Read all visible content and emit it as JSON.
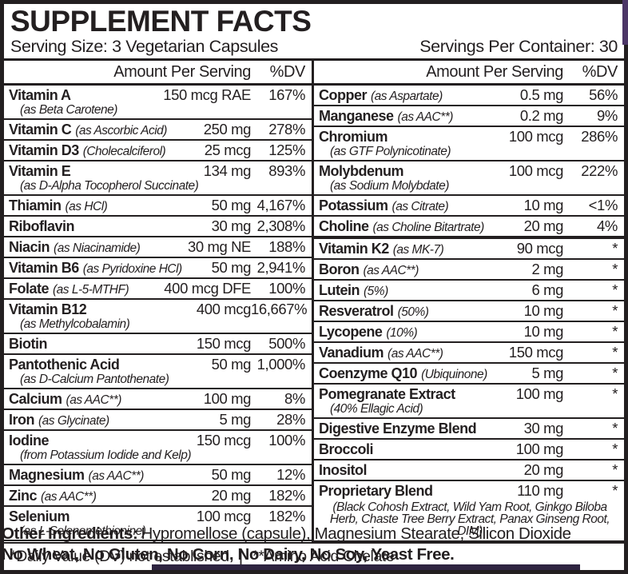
{
  "colors": {
    "ink": "#231f20",
    "accent_purple": "#4b3566",
    "bar_purple": "#2e2440"
  },
  "header": {
    "title": "SUPPLEMENT FACTS",
    "serving_size_label": "Serving Size:",
    "serving_size_value": "3 Vegetarian Capsules",
    "servings_per_container_label": "Servings Per Container:",
    "servings_per_container_value": "30"
  },
  "table": {
    "left": {
      "header": {
        "amount": "Amount Per Serving",
        "dv": "%DV"
      },
      "rows": [
        {
          "name": "Vitamin A",
          "sub": "(as Beta Carotene)",
          "amount": "150 mcg RAE",
          "dv": "167%"
        },
        {
          "name": "Vitamin C",
          "qualifier": "(as Ascorbic Acid)",
          "amount": "250 mg",
          "dv": "278%"
        },
        {
          "name": "Vitamin D3",
          "qualifier": "(Cholecalciferol)",
          "amount": "25 mcg",
          "dv": "125%"
        },
        {
          "name": "Vitamin E",
          "sub": "(as D-Alpha Tocopherol Succinate)",
          "amount": "134 mg",
          "dv": "893%"
        },
        {
          "name": "Thiamin",
          "qualifier": "(as HCl)",
          "amount": "50 mg",
          "dv": "4,167%"
        },
        {
          "name": "Riboflavin",
          "amount": "30 mg",
          "dv": "2,308%"
        },
        {
          "name": "Niacin",
          "qualifier": "(as Niacinamide)",
          "amount": "30 mg NE",
          "dv": "188%"
        },
        {
          "name": "Vitamin B6",
          "qualifier": "(as Pyridoxine HCl)",
          "amount": "50 mg",
          "dv": "2,941%"
        },
        {
          "name": "Folate",
          "qualifier": "(as L-5-MTHF)",
          "amount": "400 mcg DFE",
          "dv": "100%"
        },
        {
          "name": "Vitamin B12",
          "sub": "(as Methylcobalamin)",
          "amount": "400 mcg",
          "dv": "16,667%"
        },
        {
          "name": "Biotin",
          "amount": "150 mcg",
          "dv": "500%"
        },
        {
          "name": "Pantothenic Acid",
          "sub": "(as D-Calcium Pantothenate)",
          "amount": "50 mg",
          "dv": "1,000%"
        },
        {
          "name": "Calcium",
          "qualifier": "(as AAC**)",
          "amount": "100 mg",
          "dv": "8%"
        },
        {
          "name": "Iron",
          "qualifier": "(as Glycinate)",
          "amount": "5 mg",
          "dv": "28%"
        },
        {
          "name": "Iodine",
          "sub": "(from Potassium Iodide and Kelp)",
          "amount": "150 mcg",
          "dv": "100%"
        },
        {
          "name": "Magnesium",
          "qualifier": "(as AAC**)",
          "amount": "50 mg",
          "dv": "12%"
        },
        {
          "name": "Zinc",
          "qualifier": "(as AAC**)",
          "amount": "20 mg",
          "dv": "182%"
        },
        {
          "name": "Selenium",
          "sub": "(as L-Selenomethionine)",
          "amount": "100 mcg",
          "dv": "182%"
        }
      ]
    },
    "right": {
      "header": {
        "amount": "Amount Per Serving",
        "dv": "%DV"
      },
      "rows": [
        {
          "name": "Copper",
          "qualifier": "(as Aspartate)",
          "amount": "0.5 mg",
          "dv": "56%"
        },
        {
          "name": "Manganese",
          "qualifier": "(as AAC**)",
          "amount": "0.2 mg",
          "dv": "9%"
        },
        {
          "name": "Chromium",
          "sub": "(as GTF Polynicotinate)",
          "amount": "100 mcg",
          "dv": "286%"
        },
        {
          "name": "Molybdenum",
          "sub": "(as Sodium Molybdate)",
          "amount": "100 mcg",
          "dv": "222%"
        },
        {
          "name": "Potassium",
          "qualifier": "(as Citrate)",
          "amount": "10 mg",
          "dv": "<1%"
        },
        {
          "name": "Choline",
          "qualifier": "(as Choline Bitartrate)",
          "amount": "20 mg",
          "dv": "4%"
        },
        {
          "name": "Vitamin K2",
          "qualifier": "(as MK-7)",
          "amount": "90 mcg",
          "dv": "*",
          "group_break": true
        },
        {
          "name": "Boron",
          "qualifier": "(as AAC**)",
          "amount": "2 mg",
          "dv": "*"
        },
        {
          "name": "Lutein",
          "qualifier": "(5%)",
          "amount": "6 mg",
          "dv": "*"
        },
        {
          "name": "Resveratrol",
          "qualifier": "(50%)",
          "amount": "10 mg",
          "dv": "*"
        },
        {
          "name": "Lycopene",
          "qualifier": "(10%)",
          "amount": "10 mg",
          "dv": "*"
        },
        {
          "name": "Vanadium",
          "qualifier": "(as AAC**)",
          "amount": "150 mcg",
          "dv": "*"
        },
        {
          "name": "Coenzyme Q10",
          "qualifier": "(Ubiquinone)",
          "amount": "5 mg",
          "dv": "*"
        },
        {
          "name": "Pomegranate Extract",
          "sub": "(40% Ellagic Acid)",
          "amount": "100 mg",
          "dv": "*"
        },
        {
          "name": "Digestive Enzyme Blend",
          "amount": "30 mg",
          "dv": "*"
        },
        {
          "name": "Broccoli",
          "amount": "100 mg",
          "dv": "*"
        },
        {
          "name": "Inositol",
          "amount": "20 mg",
          "dv": "*"
        },
        {
          "name": "Proprietary Blend",
          "amount": "110 mg",
          "dv": "*",
          "note": "(Black Cohosh Extract, Wild Yam Root, Ginkgo Biloba Herb, Chaste Tree Berry Extract, Panax Ginseng Root, DIM)"
        }
      ]
    }
  },
  "footnote": {
    "dv_note": "*Daily Value (DV) not established",
    "separator": "|",
    "aac_note": "**Amino Acid Chelate"
  },
  "other_ingredients": {
    "label": "Other Ingredients:",
    "value": "Hypromellose (capsule), Magnesium Stearate, Silicon Dioxide"
  },
  "allergen_statement": "No Wheat, No Gluten, No Corn, No Dairy, No Soy, Yeast Free."
}
